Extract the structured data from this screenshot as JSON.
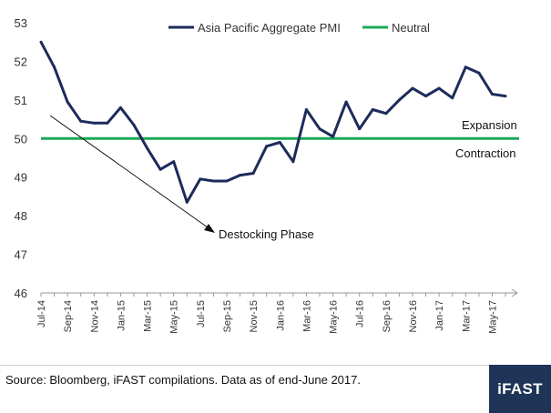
{
  "chart_data": {
    "type": "line",
    "x": [
      "Jul-14",
      "Aug-14",
      "Sep-14",
      "Oct-14",
      "Nov-14",
      "Dec-14",
      "Jan-15",
      "Feb-15",
      "Mar-15",
      "Apr-15",
      "May-15",
      "Jun-15",
      "Jul-15",
      "Aug-15",
      "Sep-15",
      "Oct-15",
      "Nov-15",
      "Dec-15",
      "Jan-16",
      "Feb-16",
      "Mar-16",
      "Apr-16",
      "May-16",
      "Jun-16",
      "Jul-16",
      "Aug-16",
      "Sep-16",
      "Oct-16",
      "Nov-16",
      "Dec-16",
      "Jan-17",
      "Feb-17",
      "Mar-17",
      "Apr-17",
      "May-17",
      "Jun-17"
    ],
    "tick_labels": [
      "Jul-14",
      "Sep-14",
      "Nov-14",
      "Jan-15",
      "Mar-15",
      "May-15",
      "Jul-15",
      "Sep-15",
      "Nov-15",
      "Jan-16",
      "Mar-16",
      "May-16",
      "Jul-16",
      "Sep-16",
      "Nov-16",
      "Jan-17",
      "Mar-17",
      "May-17"
    ],
    "series": [
      {
        "name": "Asia Pacific Aggregate PMI",
        "color": "#1c2b5a",
        "values": [
          52.5,
          51.85,
          50.95,
          50.45,
          50.4,
          50.4,
          50.8,
          50.35,
          49.75,
          49.2,
          49.4,
          48.35,
          48.95,
          48.9,
          48.9,
          49.05,
          49.1,
          49.8,
          49.9,
          49.4,
          50.75,
          50.25,
          50.05,
          50.95,
          50.25,
          50.75,
          50.65,
          51.0,
          51.3,
          51.1,
          51.3,
          51.05,
          51.85,
          51.7,
          51.15,
          51.1
        ]
      },
      {
        "name": "Neutral",
        "color": "#1aaa55",
        "constant": 50
      }
    ],
    "ylim": [
      46,
      53
    ],
    "yticks": [
      46,
      47,
      48,
      49,
      50,
      51,
      52,
      53
    ],
    "annotations": {
      "expansion": "Expansion",
      "contraction": "Contraction",
      "destocking": "Destocking Phase"
    },
    "legend_position": "top",
    "grid": false
  },
  "footer": {
    "source": "Source: Bloomberg, iFAST compilations. Data as of end-June 2017.",
    "logo": "iFAST"
  },
  "colors": {
    "logo_bg": "#1e3557",
    "axis": "#999999"
  }
}
